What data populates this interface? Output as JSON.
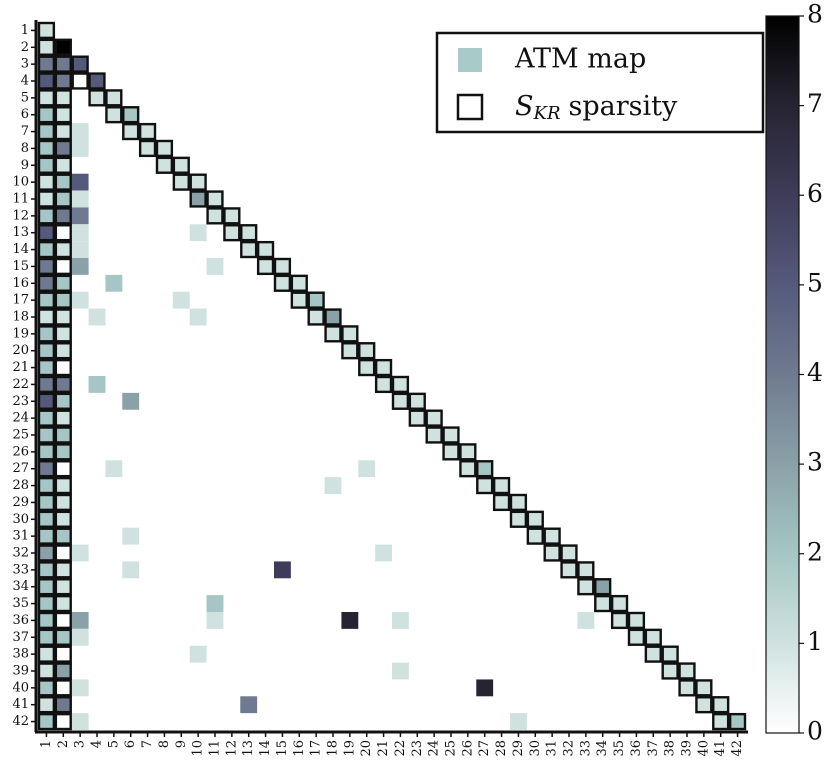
{
  "chart_data": {
    "type": "heatmap",
    "xticks": [
      1,
      2,
      3,
      4,
      5,
      6,
      7,
      8,
      9,
      10,
      11,
      12,
      13,
      14,
      15,
      16,
      17,
      18,
      19,
      20,
      21,
      22,
      23,
      24,
      25,
      26,
      27,
      28,
      29,
      30,
      31,
      32,
      33,
      34,
      35,
      36,
      37,
      38,
      39,
      40,
      41,
      42
    ],
    "yticks": [
      1,
      2,
      3,
      4,
      5,
      6,
      7,
      8,
      9,
      10,
      11,
      12,
      13,
      14,
      15,
      16,
      17,
      18,
      19,
      20,
      21,
      22,
      23,
      24,
      25,
      26,
      27,
      28,
      29,
      30,
      31,
      32,
      33,
      34,
      35,
      36,
      37,
      38,
      39,
      40,
      41,
      42
    ],
    "cells": [
      [
        1,
        1,
        1
      ],
      [
        2,
        1,
        1
      ],
      [
        2,
        2,
        8
      ],
      [
        3,
        1,
        4
      ],
      [
        3,
        2,
        4
      ],
      [
        3,
        3,
        5
      ],
      [
        4,
        1,
        5
      ],
      [
        4,
        2,
        4
      ],
      [
        4,
        4,
        5
      ],
      [
        5,
        1,
        1
      ],
      [
        5,
        2,
        1
      ],
      [
        5,
        4,
        1
      ],
      [
        5,
        5,
        1
      ],
      [
        6,
        1,
        2
      ],
      [
        6,
        2,
        1
      ],
      [
        6,
        5,
        1
      ],
      [
        6,
        6,
        2
      ],
      [
        7,
        1,
        2
      ],
      [
        7,
        2,
        1
      ],
      [
        7,
        3,
        1
      ],
      [
        7,
        6,
        1
      ],
      [
        7,
        7,
        1
      ],
      [
        8,
        1,
        2
      ],
      [
        8,
        2,
        4
      ],
      [
        8,
        3,
        1
      ],
      [
        8,
        7,
        1
      ],
      [
        8,
        8,
        1
      ],
      [
        9,
        1,
        2
      ],
      [
        9,
        2,
        1
      ],
      [
        9,
        8,
        1
      ],
      [
        9,
        9,
        1
      ],
      [
        10,
        1,
        1
      ],
      [
        10,
        2,
        2
      ],
      [
        10,
        3,
        5
      ],
      [
        10,
        9,
        1
      ],
      [
        10,
        10,
        1
      ],
      [
        11,
        1,
        1
      ],
      [
        11,
        2,
        2
      ],
      [
        11,
        3,
        1
      ],
      [
        11,
        10,
        3
      ],
      [
        11,
        11,
        1
      ],
      [
        12,
        1,
        2
      ],
      [
        12,
        2,
        4
      ],
      [
        12,
        3,
        4
      ],
      [
        12,
        11,
        1
      ],
      [
        12,
        12,
        1
      ],
      [
        13,
        1,
        5
      ],
      [
        13,
        3,
        1
      ],
      [
        13,
        10,
        1
      ],
      [
        13,
        12,
        1
      ],
      [
        13,
        13,
        1
      ],
      [
        14,
        1,
        2
      ],
      [
        14,
        2,
        1
      ],
      [
        14,
        3,
        1
      ],
      [
        14,
        13,
        1
      ],
      [
        14,
        14,
        1
      ],
      [
        15,
        1,
        4
      ],
      [
        15,
        3,
        3
      ],
      [
        15,
        11,
        1
      ],
      [
        15,
        14,
        1
      ],
      [
        15,
        15,
        1
      ],
      [
        16,
        1,
        4
      ],
      [
        16,
        2,
        2
      ],
      [
        16,
        5,
        2
      ],
      [
        16,
        15,
        1
      ],
      [
        16,
        16,
        1
      ],
      [
        17,
        1,
        2
      ],
      [
        17,
        2,
        2
      ],
      [
        17,
        3,
        1
      ],
      [
        17,
        9,
        1
      ],
      [
        17,
        16,
        1
      ],
      [
        17,
        17,
        2
      ],
      [
        18,
        1,
        1
      ],
      [
        18,
        2,
        1
      ],
      [
        18,
        4,
        1
      ],
      [
        18,
        10,
        1
      ],
      [
        18,
        17,
        1
      ],
      [
        18,
        18,
        3
      ],
      [
        19,
        1,
        2
      ],
      [
        19,
        2,
        1
      ],
      [
        19,
        18,
        1
      ],
      [
        19,
        19,
        1
      ],
      [
        20,
        1,
        2
      ],
      [
        20,
        2,
        1
      ],
      [
        20,
        19,
        1
      ],
      [
        20,
        20,
        1
      ],
      [
        21,
        1,
        2
      ],
      [
        21,
        20,
        1
      ],
      [
        21,
        21,
        1
      ],
      [
        22,
        1,
        4
      ],
      [
        22,
        2,
        4
      ],
      [
        22,
        4,
        2
      ],
      [
        22,
        21,
        1
      ],
      [
        22,
        22,
        1
      ],
      [
        23,
        1,
        5
      ],
      [
        23,
        2,
        2
      ],
      [
        23,
        6,
        3
      ],
      [
        23,
        22,
        1
      ],
      [
        23,
        23,
        1
      ],
      [
        24,
        1,
        2
      ],
      [
        24,
        2,
        1
      ],
      [
        24,
        23,
        1
      ],
      [
        24,
        24,
        1
      ],
      [
        25,
        1,
        2
      ],
      [
        25,
        2,
        2
      ],
      [
        25,
        24,
        1
      ],
      [
        25,
        25,
        1
      ],
      [
        26,
        1,
        2
      ],
      [
        26,
        2,
        2
      ],
      [
        26,
        25,
        1
      ],
      [
        26,
        26,
        1
      ],
      [
        27,
        1,
        4
      ],
      [
        27,
        5,
        1
      ],
      [
        27,
        20,
        1
      ],
      [
        27,
        26,
        1
      ],
      [
        27,
        27,
        2
      ],
      [
        28,
        1,
        2
      ],
      [
        28,
        2,
        1
      ],
      [
        28,
        18,
        1
      ],
      [
        28,
        27,
        1
      ],
      [
        28,
        28,
        1
      ],
      [
        29,
        1,
        2
      ],
      [
        29,
        2,
        1
      ],
      [
        29,
        28,
        1
      ],
      [
        29,
        29,
        1
      ],
      [
        30,
        1,
        2
      ],
      [
        30,
        2,
        1
      ],
      [
        30,
        29,
        1
      ],
      [
        30,
        30,
        1
      ],
      [
        31,
        1,
        2
      ],
      [
        31,
        2,
        2
      ],
      [
        31,
        6,
        1
      ],
      [
        31,
        30,
        1
      ],
      [
        31,
        31,
        1
      ],
      [
        32,
        1,
        3
      ],
      [
        32,
        3,
        1
      ],
      [
        32,
        21,
        1
      ],
      [
        32,
        31,
        1
      ],
      [
        32,
        32,
        1
      ],
      [
        33,
        1,
        2
      ],
      [
        33,
        2,
        1
      ],
      [
        33,
        6,
        1
      ],
      [
        33,
        15,
        6
      ],
      [
        33,
        32,
        1
      ],
      [
        33,
        33,
        1
      ],
      [
        34,
        1,
        2
      ],
      [
        34,
        2,
        1
      ],
      [
        34,
        33,
        1
      ],
      [
        34,
        34,
        3
      ],
      [
        35,
        1,
        2
      ],
      [
        35,
        2,
        1
      ],
      [
        35,
        11,
        2
      ],
      [
        35,
        34,
        1
      ],
      [
        35,
        35,
        1
      ],
      [
        36,
        1,
        2
      ],
      [
        36,
        3,
        3
      ],
      [
        36,
        11,
        1
      ],
      [
        36,
        19,
        7
      ],
      [
        36,
        22,
        1
      ],
      [
        36,
        33,
        1
      ],
      [
        36,
        35,
        1
      ],
      [
        36,
        36,
        1
      ],
      [
        37,
        1,
        2
      ],
      [
        37,
        2,
        2
      ],
      [
        37,
        3,
        1
      ],
      [
        37,
        36,
        1
      ],
      [
        37,
        37,
        1
      ],
      [
        38,
        1,
        1
      ],
      [
        38,
        10,
        1
      ],
      [
        38,
        37,
        1
      ],
      [
        38,
        38,
        1
      ],
      [
        39,
        1,
        1
      ],
      [
        39,
        2,
        3
      ],
      [
        39,
        22,
        1
      ],
      [
        39,
        38,
        1
      ],
      [
        39,
        39,
        1
      ],
      [
        40,
        1,
        2
      ],
      [
        40,
        3,
        1
      ],
      [
        40,
        27,
        7
      ],
      [
        40,
        39,
        1
      ],
      [
        40,
        40,
        1
      ],
      [
        41,
        1,
        1
      ],
      [
        41,
        2,
        4
      ],
      [
        41,
        13,
        4
      ],
      [
        41,
        40,
        1
      ],
      [
        41,
        41,
        1
      ],
      [
        42,
        1,
        2
      ],
      [
        42,
        3,
        1
      ],
      [
        42,
        29,
        1
      ],
      [
        42,
        41,
        1
      ],
      [
        42,
        42,
        2
      ]
    ],
    "sparsity": [
      [
        1
      ],
      [
        1,
        2
      ],
      [
        1,
        2,
        3
      ],
      [
        1,
        2,
        3,
        4
      ],
      [
        1,
        2,
        4,
        5
      ],
      [
        1,
        2,
        5,
        6
      ],
      [
        1,
        2,
        6,
        7
      ],
      [
        1,
        2,
        7,
        8
      ],
      [
        1,
        2,
        8,
        9
      ],
      [
        1,
        2,
        9,
        10
      ],
      [
        1,
        2,
        10,
        11
      ],
      [
        1,
        2,
        11,
        12
      ],
      [
        1,
        2,
        12,
        13
      ],
      [
        1,
        2,
        13,
        14
      ],
      [
        1,
        2,
        14,
        15
      ],
      [
        1,
        2,
        15,
        16
      ],
      [
        1,
        2,
        16,
        17
      ],
      [
        1,
        2,
        17,
        18
      ],
      [
        1,
        2,
        18,
        19
      ],
      [
        1,
        2,
        19,
        20
      ],
      [
        1,
        2,
        20,
        21
      ],
      [
        1,
        2,
        21,
        22
      ],
      [
        1,
        2,
        22,
        23
      ],
      [
        1,
        2,
        23,
        24
      ],
      [
        1,
        2,
        24,
        25
      ],
      [
        1,
        2,
        25,
        26
      ],
      [
        1,
        2,
        26,
        27
      ],
      [
        1,
        2,
        27,
        28
      ],
      [
        1,
        2,
        28,
        29
      ],
      [
        1,
        2,
        29,
        30
      ],
      [
        1,
        2,
        30,
        31
      ],
      [
        1,
        2,
        31,
        32
      ],
      [
        1,
        2,
        32,
        33
      ],
      [
        1,
        2,
        33,
        34
      ],
      [
        1,
        2,
        34,
        35
      ],
      [
        1,
        2,
        35,
        36
      ],
      [
        1,
        2,
        36,
        37
      ],
      [
        1,
        2,
        37,
        38
      ],
      [
        1,
        2,
        38,
        39
      ],
      [
        1,
        2,
        39,
        40
      ],
      [
        1,
        2,
        40,
        41
      ],
      [
        1,
        2,
        41,
        42
      ]
    ],
    "clim": [
      0,
      8
    ],
    "cticks": [
      0,
      1,
      2,
      3,
      4,
      5,
      6,
      7,
      8
    ],
    "colormap": [
      "#ffffff",
      "#cfe2e0",
      "#a5c6c4",
      "#8aa1a8",
      "#6f7a90",
      "#555a7c",
      "#3e3c58",
      "#262432",
      "#000000"
    ],
    "legend": {
      "map_label": "ATM map",
      "map_color": "#a8cbc8",
      "sparsity_symbol": "S",
      "sparsity_subscript": "KR",
      "sparsity_label": "sparsity"
    }
  }
}
